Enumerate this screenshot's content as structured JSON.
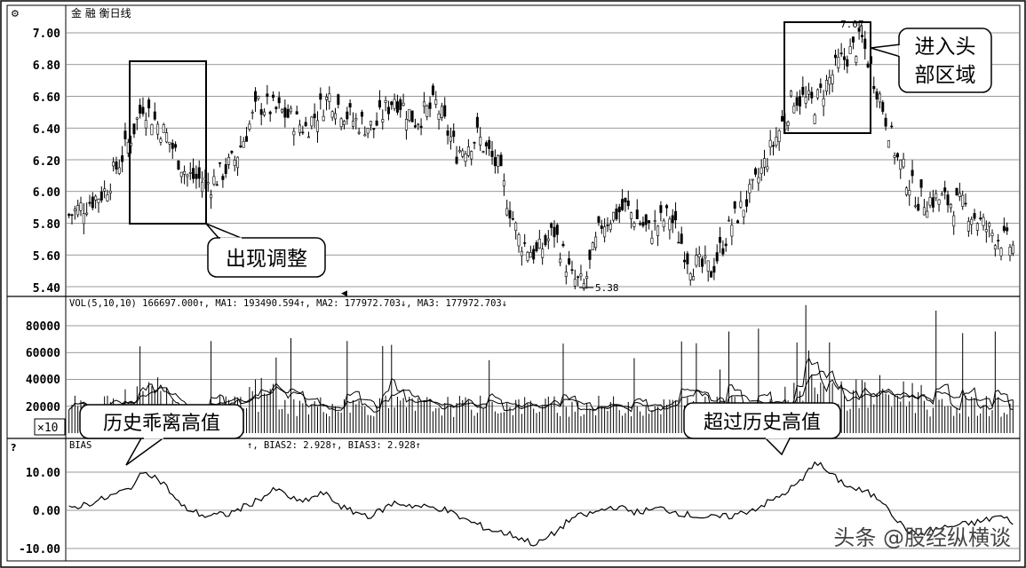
{
  "header": {
    "corner_icon": "gear-icon",
    "title": "金 融  衡日线"
  },
  "price_panel": {
    "y_ticks": [
      "7.00",
      "6.80",
      "6.60",
      "6.40",
      "6.20",
      "6.00",
      "5.80",
      "5.60",
      "5.40"
    ],
    "low_marker": "5.38",
    "high_marker": "7.07"
  },
  "volume_panel": {
    "legend": "VOL(5,10,10) 166697.000↑, MA1: 193490.594↑, MA2: 177972.703↓, MA3: 177972.703↓",
    "y_ticks": [
      "80000",
      "60000",
      "40000",
      "20000"
    ],
    "unit_label": "×10"
  },
  "bias_panel": {
    "legend_start": "BIAS",
    "legend_rest": "↑, BIAS2: 2.928↑, BIAS3: 2.928↑",
    "corner_icon": "question-icon",
    "y_ticks": [
      "10.00",
      "0.00",
      "-10.00"
    ]
  },
  "annotations": {
    "adjust": "出现调整",
    "head_zone_line1": "进入头",
    "head_zone_line2": "部区域",
    "bias_history_high": "历史乖离高值",
    "exceed_history_high": "超过历史高值"
  },
  "watermark": "头条 @股经纵横谈",
  "chart_data": {
    "type": "candlestick",
    "price_ylim": [
      5.38,
      7.07
    ],
    "price_anchor_points": [
      {
        "bar": 0,
        "close": 5.85
      },
      {
        "bar": 12,
        "close": 6.0
      },
      {
        "bar": 20,
        "close": 6.3
      },
      {
        "bar": 25,
        "close": 6.55
      },
      {
        "bar": 33,
        "close": 6.35
      },
      {
        "bar": 40,
        "close": 6.1
      },
      {
        "bar": 48,
        "close": 6.05
      },
      {
        "bar": 56,
        "close": 6.2
      },
      {
        "bar": 64,
        "close": 6.55
      },
      {
        "bar": 72,
        "close": 6.5
      },
      {
        "bar": 80,
        "close": 6.4
      },
      {
        "bar": 88,
        "close": 6.6
      },
      {
        "bar": 96,
        "close": 6.45
      },
      {
        "bar": 103,
        "close": 6.4
      },
      {
        "bar": 110,
        "close": 6.6
      },
      {
        "bar": 117,
        "close": 6.45
      },
      {
        "bar": 124,
        "close": 6.55
      },
      {
        "bar": 131,
        "close": 6.25
      },
      {
        "bar": 138,
        "close": 6.35
      },
      {
        "bar": 145,
        "close": 6.15
      },
      {
        "bar": 152,
        "close": 5.7
      },
      {
        "bar": 158,
        "close": 5.6
      },
      {
        "bar": 164,
        "close": 5.75
      },
      {
        "bar": 170,
        "close": 5.45
      },
      {
        "bar": 174,
        "close": 5.4
      },
      {
        "bar": 180,
        "close": 5.8
      },
      {
        "bar": 188,
        "close": 5.9
      },
      {
        "bar": 196,
        "close": 5.75
      },
      {
        "bar": 203,
        "close": 5.85
      },
      {
        "bar": 210,
        "close": 5.55
      },
      {
        "bar": 217,
        "close": 5.5
      },
      {
        "bar": 224,
        "close": 5.8
      },
      {
        "bar": 231,
        "close": 6.0
      },
      {
        "bar": 238,
        "close": 6.3
      },
      {
        "bar": 245,
        "close": 6.6
      },
      {
        "bar": 252,
        "close": 6.55
      },
      {
        "bar": 260,
        "close": 6.8
      },
      {
        "bar": 268,
        "close": 6.95
      },
      {
        "bar": 274,
        "close": 6.6
      },
      {
        "bar": 280,
        "close": 6.2
      },
      {
        "bar": 287,
        "close": 5.95
      },
      {
        "bar": 295,
        "close": 5.95
      },
      {
        "bar": 303,
        "close": 5.9
      },
      {
        "bar": 311,
        "close": 5.75
      },
      {
        "bar": 319,
        "close": 5.65
      }
    ],
    "volume_ylim": [
      0,
      100000
    ],
    "bias_ylim": [
      -12,
      16
    ],
    "bias_anchor_points": [
      {
        "bar": 0,
        "value": 0.5
      },
      {
        "bar": 10,
        "value": 2.5
      },
      {
        "bar": 20,
        "value": 5.5
      },
      {
        "bar": 26,
        "value": 10.5
      },
      {
        "bar": 32,
        "value": 7.0
      },
      {
        "bar": 38,
        "value": 1.0
      },
      {
        "bar": 46,
        "value": -1.5
      },
      {
        "bar": 54,
        "value": -1.0
      },
      {
        "bar": 62,
        "value": 2.0
      },
      {
        "bar": 70,
        "value": 5.5
      },
      {
        "bar": 78,
        "value": 2.0
      },
      {
        "bar": 86,
        "value": 4.5
      },
      {
        "bar": 94,
        "value": 0.0
      },
      {
        "bar": 102,
        "value": -1.5
      },
      {
        "bar": 110,
        "value": 2.0
      },
      {
        "bar": 118,
        "value": 1.0
      },
      {
        "bar": 126,
        "value": 0.5
      },
      {
        "bar": 134,
        "value": -2.5
      },
      {
        "bar": 142,
        "value": -5.0
      },
      {
        "bar": 150,
        "value": -6.5
      },
      {
        "bar": 158,
        "value": -9.0
      },
      {
        "bar": 164,
        "value": -6.0
      },
      {
        "bar": 170,
        "value": -2.0
      },
      {
        "bar": 176,
        "value": -1.0
      },
      {
        "bar": 184,
        "value": 1.0
      },
      {
        "bar": 192,
        "value": -0.5
      },
      {
        "bar": 200,
        "value": 0.5
      },
      {
        "bar": 208,
        "value": -1.0
      },
      {
        "bar": 216,
        "value": -2.0
      },
      {
        "bar": 224,
        "value": -1.5
      },
      {
        "bar": 232,
        "value": 0.5
      },
      {
        "bar": 240,
        "value": 3.5
      },
      {
        "bar": 248,
        "value": 8.0
      },
      {
        "bar": 252,
        "value": 13.0
      },
      {
        "bar": 258,
        "value": 9.0
      },
      {
        "bar": 264,
        "value": 6.0
      },
      {
        "bar": 270,
        "value": 4.5
      },
      {
        "bar": 276,
        "value": 2.0
      },
      {
        "bar": 280,
        "value": -3.0
      },
      {
        "bar": 286,
        "value": -6.5
      },
      {
        "bar": 292,
        "value": -5.0
      },
      {
        "bar": 300,
        "value": -4.0
      },
      {
        "bar": 308,
        "value": -3.0
      },
      {
        "bar": 314,
        "value": -1.5
      },
      {
        "bar": 319,
        "value": -3.0
      }
    ],
    "bar_count": 320,
    "grid": true
  }
}
